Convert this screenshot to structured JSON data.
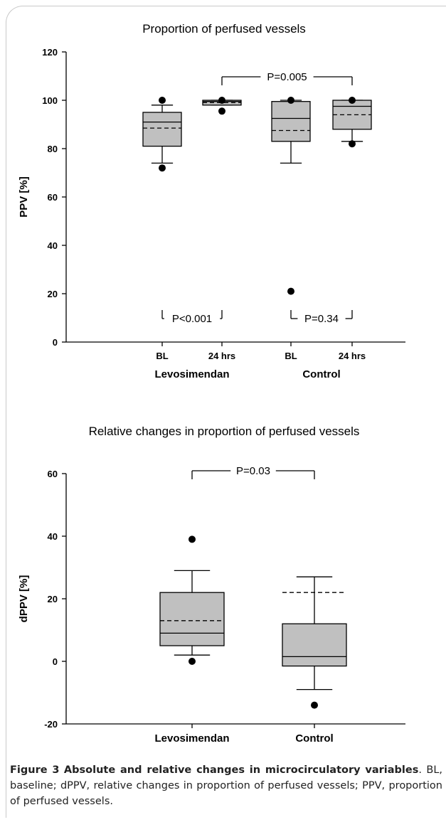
{
  "chart_data": [
    {
      "type": "box",
      "title": "Proportion of perfused vessels",
      "ylabel": "PPV [%]",
      "ylim": [
        0,
        120
      ],
      "yticks": [
        0,
        20,
        40,
        60,
        80,
        100,
        120
      ],
      "tick_labels": [
        "BL",
        "24 hrs",
        "BL",
        "24 hrs"
      ],
      "group_labels": [
        "Levosimendan",
        "Control"
      ],
      "boxes": [
        {
          "label": "BL",
          "group": "Levosimendan",
          "whisker_low": 74,
          "q1": 81,
          "median": 91,
          "mean": 88.5,
          "q3": 95,
          "whisker_high": 98,
          "outliers": [
            72,
            100
          ]
        },
        {
          "label": "24 hrs",
          "group": "Levosimendan",
          "whisker_low": 98,
          "q1": 98,
          "median": 99.5,
          "mean": 99,
          "q3": 100,
          "whisker_high": 100,
          "outliers": [
            95.5,
            100
          ]
        },
        {
          "label": "BL",
          "group": "Control",
          "whisker_low": 74,
          "q1": 83,
          "median": 92.5,
          "mean": 87.5,
          "q3": 99.5,
          "whisker_high": 100,
          "outliers": [
            21,
            100
          ]
        },
        {
          "label": "24 hrs",
          "group": "Control",
          "whisker_low": 83,
          "q1": 88,
          "median": 97.5,
          "mean": 94,
          "q3": 100,
          "whisker_high": 100,
          "outliers": [
            82,
            100
          ]
        }
      ],
      "annotations": [
        {
          "text": "P=0.005",
          "from_box": 1,
          "to_box": 3,
          "position": "top"
        },
        {
          "text": "P<0.001",
          "from_box": 0,
          "to_box": 1,
          "position": "bottom"
        },
        {
          "text": "P=0.34",
          "from_box": 2,
          "to_box": 3,
          "position": "bottom"
        }
      ]
    },
    {
      "type": "box",
      "title": "Relative changes in proportion of perfused vessels",
      "ylabel": "dPPV [%]",
      "ylim": [
        -20,
        60
      ],
      "yticks": [
        -20,
        0,
        20,
        40,
        60
      ],
      "group_labels": [
        "Levosimendan",
        "Control"
      ],
      "boxes": [
        {
          "label": "Levosimendan",
          "whisker_low": 2,
          "q1": 5,
          "median": 9,
          "mean": 13,
          "q3": 22,
          "whisker_high": 29,
          "outliers": [
            39,
            0
          ]
        },
        {
          "label": "Control",
          "whisker_low": -9,
          "q1": -1.5,
          "median": 1.5,
          "mean": 22,
          "q3": 12,
          "whisker_high": 27,
          "outliers": [
            -14
          ]
        }
      ],
      "annotations": [
        {
          "text": "P=0.03",
          "from_box": 0,
          "to_box": 1,
          "position": "top"
        }
      ]
    }
  ],
  "caption": {
    "lead": "Figure 3",
    "title": "Absolute and relative changes in microcirculatory variables",
    "rest": ". BL, baseline; dPPV, relative changes in proportion of perfused vessels; PPV, proportion of perfused vessels."
  },
  "colors": {
    "box_fill": "#c0c0c0",
    "frame": "#c9c9c9"
  }
}
